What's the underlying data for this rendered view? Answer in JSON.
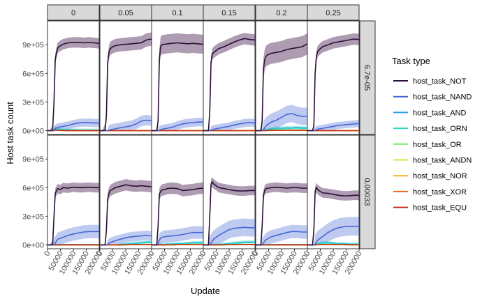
{
  "chart_data": {
    "type": "line",
    "xlabel": "Update",
    "ylabel": "Host task count",
    "xlim": [
      0,
      200000
    ],
    "ylim": [
      -40000,
      1150000
    ],
    "x_ticks": [
      0,
      50000,
      100000,
      150000,
      200000
    ],
    "x_tick_labels": [
      "0",
      "50000",
      "100000",
      "150000",
      "200000"
    ],
    "y_ticks": [
      0,
      300000,
      600000,
      900000
    ],
    "y_tick_labels": [
      "0e+00",
      "3e+05",
      "6e+05",
      "9e+05"
    ],
    "col_facets": [
      "0",
      "0.05",
      "0.1",
      "0.15",
      "0.2",
      "0.25"
    ],
    "row_facets": [
      "6.7e-05",
      "0.00033"
    ],
    "legend": {
      "title": "Task type",
      "placement": "right",
      "items": [
        {
          "label": "host_task_NOT",
          "color": "#2b0f36"
        },
        {
          "label": "host_task_NAND",
          "color": "#4766d6"
        },
        {
          "label": "host_task_AND",
          "color": "#2b9fe8"
        },
        {
          "label": "host_task_ORN",
          "color": "#2bd9c0"
        },
        {
          "label": "host_task_OR",
          "color": "#6cf060"
        },
        {
          "label": "host_task_ANDN",
          "color": "#d2e838"
        },
        {
          "label": "host_task_NOR",
          "color": "#f8b12a"
        },
        {
          "label": "host_task_XOR",
          "color": "#ed6a1c"
        },
        {
          "label": "host_task_EQU",
          "color": "#c42c10"
        }
      ]
    },
    "x": [
      0,
      10000,
      20000,
      25000,
      30000,
      35000,
      40000,
      50000,
      60000,
      80000,
      100000,
      120000,
      140000,
      160000,
      180000,
      200000
    ],
    "panels": [
      {
        "row": "6.7e-05",
        "col": "0",
        "NOT": [
          0,
          0,
          10000,
          300000,
          750000,
          820000,
          870000,
          890000,
          905000,
          920000,
          925000,
          925000,
          920000,
          925000,
          920000,
          915000
        ],
        "NOT_band": 55000,
        "NAND": [
          0,
          0,
          0,
          5000,
          20000,
          30000,
          35000,
          40000,
          45000,
          55000,
          70000,
          80000,
          85000,
          85000,
          80000,
          80000
        ],
        "minor": [
          0,
          0,
          0,
          2000,
          30000,
          25000,
          20000,
          15000,
          10000,
          8000,
          8000,
          6000,
          6000,
          5000,
          5000,
          5000
        ]
      },
      {
        "row": "6.7e-05",
        "col": "0.05",
        "NOT": [
          0,
          0,
          5000,
          150000,
          700000,
          820000,
          860000,
          880000,
          890000,
          900000,
          905000,
          910000,
          915000,
          920000,
          950000,
          960000
        ],
        "NOT_band": 70000,
        "NAND": [
          0,
          0,
          0,
          0,
          0,
          5000,
          10000,
          15000,
          20000,
          30000,
          40000,
          50000,
          70000,
          100000,
          110000,
          105000
        ],
        "minor": [
          0,
          0,
          0,
          0,
          0,
          0,
          0,
          0,
          0,
          0,
          0,
          0,
          0,
          0,
          0,
          0
        ]
      },
      {
        "row": "6.7e-05",
        "col": "0.1",
        "NOT": [
          0,
          0,
          0,
          100000,
          750000,
          880000,
          900000,
          905000,
          910000,
          915000,
          920000,
          915000,
          910000,
          915000,
          910000,
          905000
        ],
        "NOT_band": 100000,
        "NAND": [
          0,
          0,
          0,
          0,
          5000,
          10000,
          15000,
          20000,
          25000,
          35000,
          55000,
          70000,
          80000,
          85000,
          90000,
          90000
        ],
        "minor": [
          0,
          0,
          0,
          0,
          0,
          0,
          0,
          0,
          0,
          0,
          0,
          0,
          0,
          0,
          0,
          0
        ]
      },
      {
        "row": "6.7e-05",
        "col": "0.15",
        "NOT": [
          0,
          0,
          0,
          200000,
          720000,
          800000,
          820000,
          840000,
          860000,
          880000,
          905000,
          930000,
          950000,
          965000,
          955000,
          950000
        ],
        "NOT_band": 60000,
        "NAND": [
          0,
          0,
          0,
          0,
          5000,
          10000,
          15000,
          20000,
          25000,
          35000,
          45000,
          60000,
          70000,
          80000,
          85000,
          80000
        ],
        "minor": [
          0,
          0,
          0,
          0,
          0,
          0,
          0,
          0,
          0,
          0,
          0,
          0,
          0,
          0,
          0,
          0
        ]
      },
      {
        "row": "6.7e-05",
        "col": "0.2",
        "NOT": [
          0,
          0,
          0,
          100000,
          650000,
          740000,
          780000,
          800000,
          810000,
          820000,
          830000,
          850000,
          860000,
          870000,
          880000,
          910000
        ],
        "NOT_band": 110000,
        "NAND": [
          0,
          0,
          0,
          0,
          10000,
          30000,
          50000,
          70000,
          90000,
          110000,
          140000,
          170000,
          180000,
          160000,
          150000,
          150000
        ],
        "minor": [
          0,
          0,
          0,
          0,
          0,
          5000,
          10000,
          15000,
          20000,
          25000,
          25000,
          30000,
          30000,
          35000,
          30000,
          30000
        ]
      },
      {
        "row": "6.7e-05",
        "col": "0.25",
        "NOT": [
          0,
          0,
          0,
          50000,
          600000,
          780000,
          830000,
          860000,
          880000,
          900000,
          920000,
          930000,
          940000,
          950000,
          960000,
          955000
        ],
        "NOT_band": 60000,
        "NAND": [
          0,
          0,
          0,
          0,
          5000,
          10000,
          15000,
          20000,
          25000,
          35000,
          45000,
          55000,
          60000,
          65000,
          70000,
          75000
        ],
        "minor": [
          0,
          0,
          0,
          0,
          0,
          0,
          0,
          0,
          0,
          0,
          0,
          0,
          0,
          0,
          0,
          0
        ]
      },
      {
        "row": "0.00033",
        "col": "0",
        "NOT": [
          0,
          0,
          5000,
          300000,
          540000,
          570000,
          590000,
          580000,
          600000,
          595000,
          605000,
          600000,
          600000,
          605000,
          600000,
          600000
        ],
        "NOT_band": 50000,
        "NAND": [
          0,
          0,
          0,
          5000,
          20000,
          40000,
          60000,
          70000,
          80000,
          100000,
          115000,
          125000,
          135000,
          140000,
          140000,
          140000
        ],
        "minor": [
          0,
          0,
          0,
          0,
          5000,
          5000,
          5000,
          5000,
          5000,
          5000,
          5000,
          5000,
          5000,
          5000,
          5000,
          5000
        ]
      },
      {
        "row": "0.00033",
        "col": "0.05",
        "NOT": [
          0,
          0,
          0,
          150000,
          480000,
          540000,
          570000,
          585000,
          600000,
          615000,
          630000,
          620000,
          615000,
          620000,
          615000,
          610000
        ],
        "NOT_band": 60000,
        "NAND": [
          0,
          0,
          0,
          0,
          5000,
          15000,
          25000,
          35000,
          45000,
          60000,
          75000,
          85000,
          90000,
          95000,
          100000,
          95000
        ],
        "minor": [
          0,
          0,
          0,
          0,
          0,
          0,
          0,
          0,
          0,
          5000,
          10000,
          15000,
          20000,
          25000,
          30000,
          30000
        ]
      },
      {
        "row": "0.00033",
        "col": "0.1",
        "NOT": [
          0,
          0,
          0,
          200000,
          530000,
          560000,
          575000,
          580000,
          590000,
          595000,
          590000,
          570000,
          575000,
          580000,
          590000,
          595000
        ],
        "NOT_band": 60000,
        "NAND": [
          0,
          0,
          0,
          10000,
          50000,
          70000,
          80000,
          85000,
          90000,
          95000,
          100000,
          110000,
          120000,
          130000,
          130000,
          130000
        ],
        "minor": [
          0,
          0,
          0,
          0,
          5000,
          5000,
          5000,
          5000,
          10000,
          10000,
          15000,
          15000,
          20000,
          25000,
          25000,
          25000
        ]
      },
      {
        "row": "0.00033",
        "col": "0.15",
        "NOT": [
          0,
          0,
          0,
          300000,
          640000,
          660000,
          640000,
          620000,
          600000,
          590000,
          580000,
          570000,
          565000,
          565000,
          570000,
          570000
        ],
        "NOT_band": 50000,
        "NAND": [
          0,
          0,
          0,
          5000,
          20000,
          40000,
          60000,
          80000,
          100000,
          130000,
          160000,
          175000,
          180000,
          185000,
          180000,
          180000
        ],
        "minor": [
          0,
          0,
          0,
          0,
          5000,
          5000,
          5000,
          5000,
          5000,
          10000,
          15000,
          20000,
          25000,
          30000,
          30000,
          30000
        ]
      },
      {
        "row": "0.00033",
        "col": "0.2",
        "NOT": [
          0,
          0,
          0,
          200000,
          520000,
          570000,
          590000,
          595000,
          600000,
          605000,
          600000,
          595000,
          600000,
          600000,
          595000,
          595000
        ],
        "NOT_band": 50000,
        "NAND": [
          0,
          0,
          0,
          5000,
          20000,
          40000,
          55000,
          70000,
          85000,
          100000,
          115000,
          130000,
          140000,
          140000,
          135000,
          135000
        ],
        "minor": [
          0,
          0,
          0,
          0,
          5000,
          5000,
          5000,
          5000,
          5000,
          5000,
          5000,
          5000,
          5000,
          5000,
          5000,
          5000
        ]
      },
      {
        "row": "0.00033",
        "col": "0.25",
        "NOT": [
          0,
          0,
          0,
          150000,
          560000,
          600000,
          580000,
          560000,
          545000,
          540000,
          530000,
          520000,
          515000,
          515000,
          520000,
          520000
        ],
        "NOT_band": 50000,
        "NAND": [
          0,
          0,
          0,
          0,
          10000,
          30000,
          50000,
          70000,
          90000,
          130000,
          160000,
          180000,
          190000,
          195000,
          195000,
          195000
        ],
        "minor": [
          0,
          0,
          0,
          0,
          5000,
          10000,
          15000,
          20000,
          25000,
          25000,
          20000,
          15000,
          15000,
          10000,
          10000,
          10000
        ]
      }
    ]
  }
}
